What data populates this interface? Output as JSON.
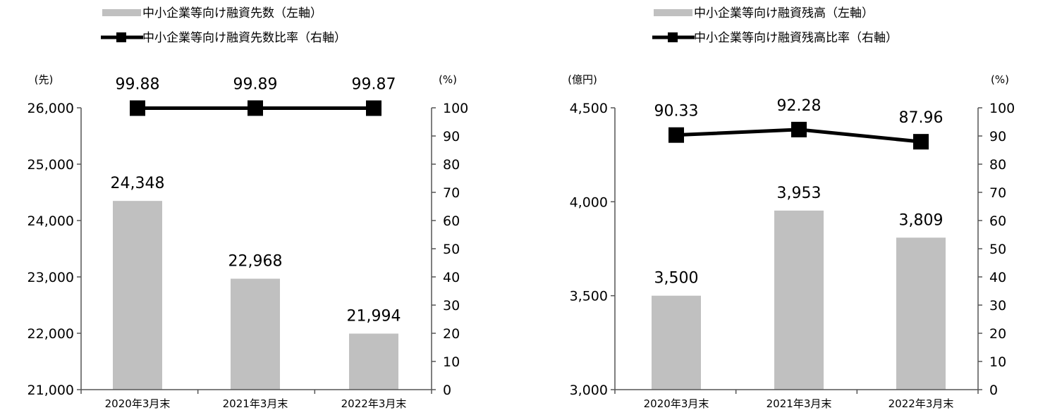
{
  "chart_data": [
    {
      "type": "bar+line",
      "legend": [
        {
          "name": "中小企業等向け融資先数（左軸）",
          "kind": "bar"
        },
        {
          "name": "中小企業等向け融資先数比率（右軸）",
          "kind": "line"
        }
      ],
      "categories": [
        "2020年3月末",
        "2021年3月末",
        "2022年3月末"
      ],
      "bar_values": [
        24348,
        22968,
        21994
      ],
      "bar_labels": [
        "24,348",
        "22,968",
        "21,994"
      ],
      "line_values": [
        99.88,
        99.89,
        99.87
      ],
      "line_labels": [
        "99.88",
        "99.89",
        "99.87"
      ],
      "left_unit": "(先)",
      "right_unit": "(%)",
      "left_ylim": [
        21000,
        26000
      ],
      "left_ticks": [
        "21,000",
        "22,000",
        "23,000",
        "24,000",
        "25,000",
        "26,000"
      ],
      "right_ylim": [
        0,
        100
      ],
      "right_ticks": [
        "0",
        "10",
        "20",
        "30",
        "40",
        "50",
        "60",
        "70",
        "80",
        "90",
        "100"
      ],
      "colors": {
        "bar": "#c0c0c0",
        "line": "#000000"
      }
    },
    {
      "type": "bar+line",
      "legend": [
        {
          "name": "中小企業等向け融資残高（左軸）",
          "kind": "bar"
        },
        {
          "name": "中小企業等向け融資残高比率（右軸）",
          "kind": "line"
        }
      ],
      "categories": [
        "2020年3月末",
        "2021年3月末",
        "2022年3月末"
      ],
      "bar_values": [
        3500,
        3953,
        3809
      ],
      "bar_labels": [
        "3,500",
        "3,953",
        "3,809"
      ],
      "line_values": [
        90.33,
        92.28,
        87.96
      ],
      "line_labels": [
        "90.33",
        "92.28",
        "87.96"
      ],
      "left_unit": "(億円)",
      "right_unit": "(%)",
      "left_ylim": [
        3000,
        4500
      ],
      "left_ticks": [
        "3,000",
        "3,500",
        "4,000",
        "4,500"
      ],
      "right_ylim": [
        0,
        100
      ],
      "right_ticks": [
        "0",
        "10",
        "20",
        "30",
        "40",
        "50",
        "60",
        "70",
        "80",
        "90",
        "100"
      ],
      "colors": {
        "bar": "#c0c0c0",
        "line": "#000000"
      }
    }
  ]
}
